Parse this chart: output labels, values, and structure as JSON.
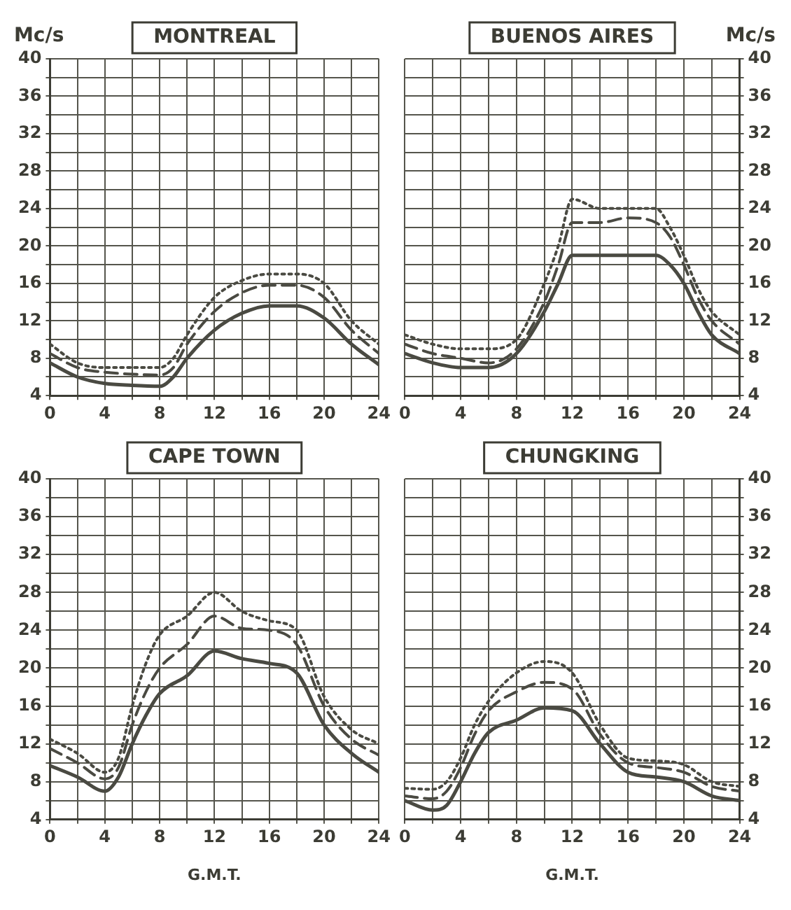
{
  "chart_data": [
    {
      "type": "line",
      "title": "MONTREAL",
      "ylabel": "Mc/s",
      "xlim": [
        0,
        24
      ],
      "xticks": [
        0,
        {
          "value": 2,
          "label": null
        },
        4,
        {
          "value": 6,
          "label": null
        },
        8,
        {
          "value": 10,
          "label": null
        },
        12,
        {
          "value": 14,
          "label": null
        },
        16,
        {
          "value": 18,
          "label": null
        },
        20,
        {
          "value": 22,
          "label": null
        },
        24
      ],
      "ylim": [
        4,
        40
      ],
      "yticks": [
        4,
        {
          "value": 6,
          "label": null
        },
        8,
        {
          "value": 10,
          "label": null
        },
        12,
        {
          "value": 14,
          "label": null
        },
        16,
        {
          "value": 18,
          "label": null
        },
        20,
        {
          "value": 22,
          "label": null
        },
        24,
        {
          "value": 26,
          "label": null
        },
        28,
        {
          "value": 30,
          "label": null
        },
        32,
        {
          "value": 34,
          "label": null
        },
        36,
        {
          "value": 38,
          "label": null
        },
        40
      ],
      "grid": true,
      "marker": "none",
      "series": [
        {
          "color": "#4a4a42",
          "line_style": "solid",
          "x": [
            0,
            2,
            4,
            6,
            8,
            9,
            10,
            12,
            14,
            16,
            18,
            20,
            22,
            24
          ],
          "values": [
            7.5,
            6,
            5.3,
            5.1,
            5,
            6,
            8,
            11,
            12.8,
            13.6,
            13.6,
            12.3,
            9.5,
            7.3
          ]
        },
        {
          "color": "#4a4a42",
          "line_style": "dashed",
          "x": [
            0,
            2,
            4,
            6,
            8,
            9,
            10,
            12,
            14,
            16,
            18,
            20,
            22,
            24
          ],
          "values": [
            8.5,
            7,
            6.5,
            6.3,
            6.2,
            7,
            9.5,
            13,
            15,
            15.8,
            15.8,
            14.5,
            11,
            8.5
          ]
        },
        {
          "color": "#4a4a42",
          "line_style": "dotted",
          "x": [
            0,
            2,
            4,
            6,
            8,
            9,
            10,
            12,
            14,
            16,
            18,
            20,
            22,
            24
          ],
          "values": [
            9.5,
            7.5,
            7,
            7,
            7,
            8,
            10.5,
            14.5,
            16.3,
            17,
            17,
            16,
            12,
            9.5
          ]
        }
      ]
    },
    {
      "type": "line",
      "title": "BUENOS AIRES",
      "y2label": "Mc/s",
      "xlim": [
        0,
        24
      ],
      "xticks": [
        0,
        {
          "value": 2,
          "label": null
        },
        4,
        {
          "value": 6,
          "label": null
        },
        8,
        {
          "value": 10,
          "label": null
        },
        12,
        {
          "value": 14,
          "label": null
        },
        16,
        {
          "value": 18,
          "label": null
        },
        20,
        {
          "value": 22,
          "label": null
        },
        24
      ],
      "y2lim": [
        4,
        40
      ],
      "y2ticks": [
        4,
        {
          "value": 6,
          "label": null
        },
        8,
        {
          "value": 10,
          "label": null
        },
        12,
        {
          "value": 14,
          "label": null
        },
        16,
        {
          "value": 18,
          "label": null
        },
        20,
        {
          "value": 22,
          "label": null
        },
        24,
        {
          "value": 26,
          "label": null
        },
        28,
        {
          "value": 30,
          "label": null
        },
        32,
        {
          "value": 34,
          "label": null
        },
        36,
        {
          "value": 38,
          "label": null
        },
        40
      ],
      "grid": true,
      "marker": "none",
      "series": [
        {
          "color": "#4a4a42",
          "line_style": "solid",
          "axis": "y2",
          "x": [
            0,
            2,
            4,
            6,
            8,
            10,
            11,
            12,
            14,
            16,
            18,
            19,
            20,
            21,
            22,
            24
          ],
          "values": [
            8.5,
            7.5,
            7,
            7,
            8.5,
            13,
            16,
            19,
            19,
            19,
            19,
            18,
            16,
            13,
            10.5,
            8.5
          ]
        },
        {
          "color": "#4a4a42",
          "line_style": "dashed",
          "axis": "y2",
          "x": [
            0,
            2,
            4,
            6,
            8,
            10,
            11,
            12,
            14,
            16,
            18,
            19,
            20,
            21,
            22,
            24
          ],
          "values": [
            9.5,
            8.5,
            8,
            7.5,
            9,
            14,
            18,
            22.5,
            22.5,
            23,
            22.5,
            21,
            18,
            14.5,
            12,
            9.5
          ]
        },
        {
          "color": "#4a4a42",
          "line_style": "dotted",
          "axis": "y2",
          "x": [
            0,
            2,
            4,
            6,
            8,
            10,
            11,
            12,
            14,
            16,
            18,
            19,
            20,
            21,
            22,
            24
          ],
          "values": [
            10.5,
            9.5,
            9,
            9,
            10,
            16,
            20,
            25,
            24,
            24,
            24,
            22,
            19,
            15.5,
            13,
            10.5
          ]
        }
      ]
    },
    {
      "type": "line",
      "title": "CAPE TOWN",
      "xlabel": "G.M.T.",
      "xlim": [
        0,
        24
      ],
      "xticks": [
        0,
        {
          "value": 2,
          "label": null
        },
        4,
        {
          "value": 6,
          "label": null
        },
        8,
        {
          "value": 10,
          "label": null
        },
        12,
        {
          "value": 14,
          "label": null
        },
        16,
        {
          "value": 18,
          "label": null
        },
        20,
        {
          "value": 22,
          "label": null
        },
        24
      ],
      "ylim": [
        4,
        40
      ],
      "yticks": [
        4,
        {
          "value": 6,
          "label": null
        },
        8,
        {
          "value": 10,
          "label": null
        },
        12,
        {
          "value": 14,
          "label": null
        },
        16,
        {
          "value": 18,
          "label": null
        },
        20,
        {
          "value": 22,
          "label": null
        },
        24,
        {
          "value": 26,
          "label": null
        },
        28,
        {
          "value": 30,
          "label": null
        },
        32,
        {
          "value": 34,
          "label": null
        },
        36,
        {
          "value": 38,
          "label": null
        },
        40
      ],
      "grid": true,
      "marker": "none",
      "series": [
        {
          "color": "#4a4a42",
          "line_style": "solid",
          "x": [
            0,
            2,
            4,
            5,
            6,
            7,
            8,
            10,
            12,
            14,
            16,
            18,
            20,
            22,
            24
          ],
          "values": [
            9.7,
            8.5,
            7,
            8.5,
            12,
            15,
            17.3,
            19.2,
            21.8,
            21,
            20.5,
            19.5,
            14,
            11,
            9
          ]
        },
        {
          "color": "#4a4a42",
          "line_style": "dashed",
          "x": [
            0,
            2,
            4,
            5,
            6,
            7,
            8,
            10,
            12,
            14,
            16,
            18,
            20,
            22,
            24
          ],
          "values": [
            11.5,
            10,
            8.3,
            9.5,
            14,
            17.5,
            20,
            22.5,
            25.5,
            24.2,
            24,
            22.5,
            16,
            12.5,
            10.8
          ]
        },
        {
          "color": "#4a4a42",
          "line_style": "dotted",
          "x": [
            0,
            2,
            4,
            5,
            6,
            7,
            8,
            10,
            12,
            14,
            16,
            18,
            20,
            22,
            24
          ],
          "values": [
            12.5,
            11,
            9,
            10.5,
            16,
            20.5,
            23.5,
            25.5,
            28,
            26,
            25,
            24,
            17,
            13.5,
            12
          ]
        }
      ]
    },
    {
      "type": "line",
      "title": "CHUNGKING",
      "xlabel": "G.M.T.",
      "xlim": [
        0,
        24
      ],
      "xticks": [
        0,
        {
          "value": 2,
          "label": null
        },
        4,
        {
          "value": 6,
          "label": null
        },
        8,
        {
          "value": 10,
          "label": null
        },
        12,
        {
          "value": 14,
          "label": null
        },
        16,
        {
          "value": 18,
          "label": null
        },
        20,
        {
          "value": 22,
          "label": null
        },
        24
      ],
      "y2lim": [
        4,
        40
      ],
      "y2ticks": [
        4,
        {
          "value": 6,
          "label": null
        },
        8,
        {
          "value": 10,
          "label": null
        },
        12,
        {
          "value": 14,
          "label": null
        },
        16,
        {
          "value": 18,
          "label": null
        },
        20,
        {
          "value": 22,
          "label": null
        },
        24,
        {
          "value": 26,
          "label": null
        },
        28,
        {
          "value": 30,
          "label": null
        },
        32,
        {
          "value": 34,
          "label": null
        },
        36,
        {
          "value": 38,
          "label": null
        },
        40
      ],
      "grid": true,
      "marker": "none",
      "series": [
        {
          "color": "#4a4a42",
          "line_style": "solid",
          "axis": "y2",
          "x": [
            0,
            2,
            3,
            4,
            5,
            6,
            8,
            10,
            12,
            14,
            16,
            18,
            20,
            22,
            24
          ],
          "values": [
            6,
            5,
            5.5,
            8,
            11,
            13.2,
            14.5,
            15.8,
            15.5,
            12,
            9,
            8.5,
            8,
            6.5,
            6
          ]
        },
        {
          "color": "#4a4a42",
          "line_style": "dashed",
          "axis": "y2",
          "x": [
            0,
            2,
            3,
            4,
            5,
            6,
            8,
            10,
            12,
            14,
            16,
            18,
            20,
            22,
            24
          ],
          "values": [
            6.5,
            6.2,
            7,
            9.5,
            13,
            15.5,
            17.5,
            18.5,
            17.8,
            13,
            10,
            9.5,
            9,
            7.5,
            7
          ]
        },
        {
          "color": "#4a4a42",
          "line_style": "dotted",
          "axis": "y2",
          "x": [
            0,
            2,
            3,
            4,
            5,
            6,
            8,
            10,
            12,
            14,
            16,
            18,
            20,
            22,
            24
          ],
          "values": [
            7.3,
            7.2,
            8,
            10.5,
            14,
            16.5,
            19.5,
            20.7,
            19.5,
            14,
            10.5,
            10.2,
            9.8,
            8,
            7.5
          ]
        }
      ]
    }
  ]
}
